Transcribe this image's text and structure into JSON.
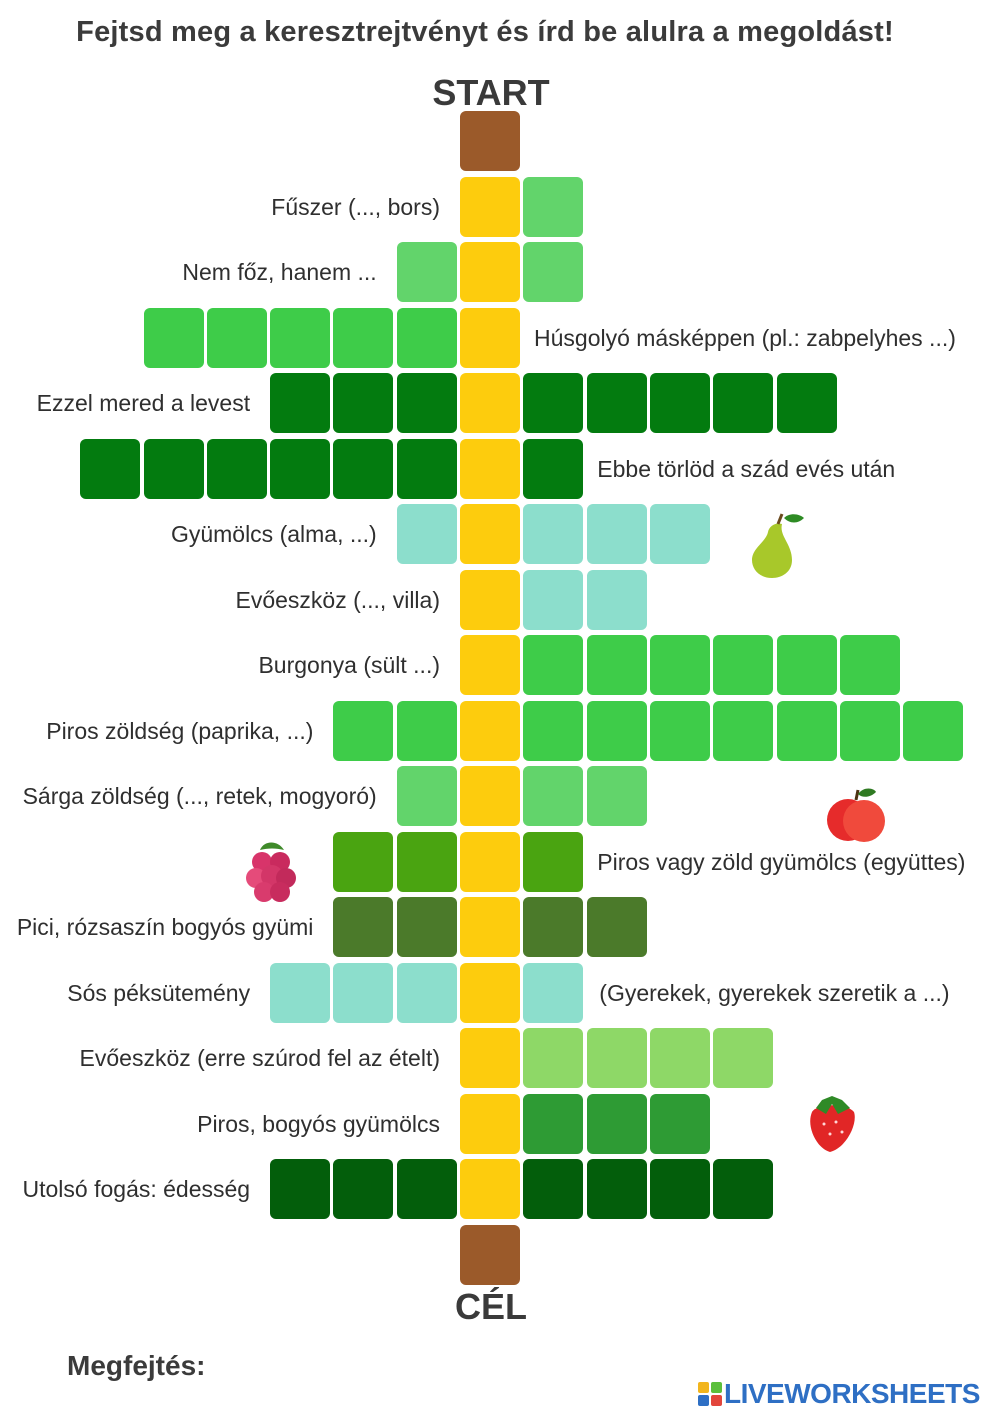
{
  "title": "Fejtsd meg a keresztrejtvényt és írd be alulra a megoldást!",
  "start_label": "START",
  "goal_label": "CÉL",
  "solution_label": "Megfejtés:",
  "brand": "LIVEWORKSHEETS",
  "colors": {
    "key_column": "#fdcc0d",
    "cap": "#9b5a2a",
    "mint": "#8cdecc",
    "light_green": "#62d46b",
    "green": "#3ecc49",
    "dark_green": "#037b0f",
    "olive": "#4aa411",
    "moss": "#4b7a2a",
    "lime": "#8ed867",
    "mid_green": "#2e9b34",
    "brand_blue": "#2e6fc4"
  },
  "rows": [
    {
      "clue": "Fűszer (..., bors)",
      "clue_side": "left",
      "left_cells": 0,
      "right_cells": 1,
      "color": "#62d46b"
    },
    {
      "clue": "Nem főz, hanem ...",
      "clue_side": "left",
      "left_cells": 1,
      "right_cells": 1,
      "color": "#62d46b"
    },
    {
      "clue": "Húsgolyó másképpen (pl.: zabpelyhes ...)",
      "clue_side": "right",
      "left_cells": 5,
      "right_cells": 0,
      "color": "#3ecc49"
    },
    {
      "clue": "Ezzel mered a levest",
      "clue_side": "left",
      "left_cells": 3,
      "right_cells": 5,
      "color": "#037b0f"
    },
    {
      "clue": "Ebbe törlöd a szád evés után",
      "clue_side": "right",
      "left_cells": 6,
      "right_cells": 1,
      "color": "#037b0f"
    },
    {
      "clue": "Gyümölcs (alma, ...)",
      "clue_side": "left",
      "left_cells": 1,
      "right_cells": 3,
      "color": "#8cdecc"
    },
    {
      "clue": "Evőeszköz (..., villa)",
      "clue_side": "left",
      "left_cells": 0,
      "right_cells": 2,
      "color": "#8cdecc"
    },
    {
      "clue": "Burgonya (sült ...)",
      "clue_side": "left",
      "left_cells": 0,
      "right_cells": 6,
      "color": "#3ecc49"
    },
    {
      "clue": "Piros zöldség (paprika, ...)",
      "clue_side": "left",
      "left_cells": 2,
      "right_cells": 7,
      "color": "#3ecc49"
    },
    {
      "clue": "Sárga zöldség (..., retek, mogyoró)",
      "clue_side": "left",
      "left_cells": 1,
      "right_cells": 2,
      "color": "#62d46b"
    },
    {
      "clue": "Piros vagy zöld gyümölcs (együttes)",
      "clue_side": "right",
      "left_cells": 2,
      "right_cells": 1,
      "color": "#4aa411"
    },
    {
      "clue": "Pici, rózsaszín bogyós gyümi",
      "clue_side": "left",
      "left_cells": 2,
      "right_cells": 2,
      "color": "#4b7a2a"
    },
    {
      "clue": "Sós péksütemény",
      "clue_side": "left",
      "left_cells": 3,
      "right_cells": 1,
      "color": "#8cdecc"
    },
    {
      "clue": "(Gyerekek, gyerekek szeretik a ...)",
      "clue_side": "right_far",
      "left_cells": 0,
      "right_cells": 0,
      "color": "#8cdecc"
    },
    {
      "clue": "Evőeszköz (erre szúrod fel az ételt)",
      "clue_side": "left",
      "left_cells": 0,
      "right_cells": 4,
      "color": "#8ed867"
    },
    {
      "clue": "Piros, bogyós gyümölcs",
      "clue_side": "left",
      "left_cells": 0,
      "right_cells": 3,
      "color": "#2e9b34"
    },
    {
      "clue": "Utolsó fogás: édesség",
      "clue_side": "left",
      "left_cells": 3,
      "right_cells": 4,
      "color": "#035e0b"
    }
  ],
  "decorations": [
    "pear-icon",
    "apple-icon",
    "raspberry-icon",
    "strawberry-icon"
  ]
}
